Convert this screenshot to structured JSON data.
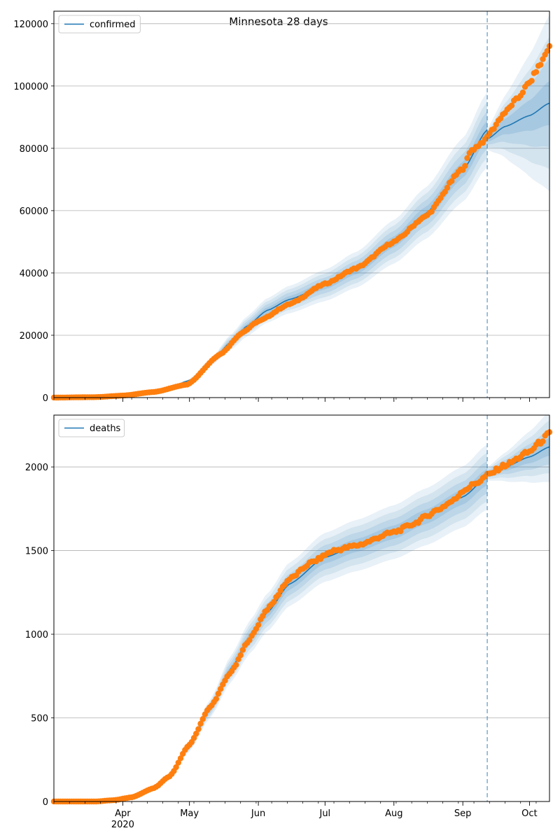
{
  "title": "Minnesota 28 days",
  "colors": {
    "model": "#1f77b4",
    "band": "#1f77b4",
    "observed": "#ff7f0e",
    "grid": "#b0b0b0",
    "split_line": "#1f77b4"
  },
  "x_axis": {
    "start": "2020-03-01",
    "end": "2020-10-10",
    "month_ticks": [
      {
        "date": "2020-04-01",
        "label": "Apr"
      },
      {
        "date": "2020-05-01",
        "label": "May"
      },
      {
        "date": "2020-06-01",
        "label": "Jun"
      },
      {
        "date": "2020-07-01",
        "label": "Jul"
      },
      {
        "date": "2020-08-01",
        "label": "Aug"
      },
      {
        "date": "2020-09-01",
        "label": "Sep"
      },
      {
        "date": "2020-10-01",
        "label": "Oct"
      }
    ],
    "year_label": "2020",
    "forecast_start": "2020-09-12"
  },
  "chart_data": [
    {
      "type": "line",
      "name": "confirmed",
      "legend": "confirmed",
      "legend_position": "top-left",
      "ylim": [
        0,
        124000
      ],
      "yticks": [
        0,
        20000,
        40000,
        60000,
        80000,
        100000,
        120000
      ],
      "grid": "horizontal",
      "model_fit": [
        [
          "2020-03-01",
          0
        ],
        [
          "2020-03-25",
          300
        ],
        [
          "2020-04-05",
          1000
        ],
        [
          "2020-04-20",
          2500
        ],
        [
          "2020-05-01",
          5500
        ],
        [
          "2020-05-10",
          11000
        ],
        [
          "2020-05-20",
          18000
        ],
        [
          "2020-05-27",
          23000
        ],
        [
          "2020-06-05",
          28000
        ],
        [
          "2020-06-15",
          31500
        ],
        [
          "2020-07-01",
          36000
        ],
        [
          "2020-07-15",
          41000
        ],
        [
          "2020-08-01",
          50000
        ],
        [
          "2020-08-15",
          59000
        ],
        [
          "2020-09-01",
          73000
        ],
        [
          "2020-09-12",
          86000
        ]
      ],
      "model_forecast": [
        [
          "2020-09-12",
          83000
        ],
        [
          "2020-09-20",
          87000
        ],
        [
          "2020-10-01",
          90500
        ],
        [
          "2020-10-10",
          94500
        ]
      ],
      "band_spread": {
        "fit": 0.14,
        "forecast_start": 0.04,
        "forecast_end": 0.3
      },
      "observed": [
        [
          "2020-03-01",
          0
        ],
        [
          "2020-03-20",
          150
        ],
        [
          "2020-04-01",
          650
        ],
        [
          "2020-04-15",
          1800
        ],
        [
          "2020-04-30",
          4200
        ],
        [
          "2020-05-15",
          14000
        ],
        [
          "2020-05-25",
          21000
        ],
        [
          "2020-06-01",
          24500
        ],
        [
          "2020-06-15",
          30000
        ],
        [
          "2020-07-01",
          36500
        ],
        [
          "2020-07-15",
          41500
        ],
        [
          "2020-08-01",
          50000
        ],
        [
          "2020-08-15",
          58000
        ],
        [
          "2020-09-01",
          73500
        ],
        [
          "2020-09-05",
          79500
        ],
        [
          "2020-09-11",
          82500
        ],
        [
          "2020-09-13",
          85000
        ],
        [
          "2020-09-20",
          91500
        ],
        [
          "2020-09-25",
          95500
        ],
        [
          "2020-10-01",
          101000
        ],
        [
          "2020-10-05",
          106000
        ],
        [
          "2020-10-10",
          112500
        ]
      ]
    },
    {
      "type": "line",
      "name": "deaths",
      "legend": "deaths",
      "legend_position": "top-left",
      "ylim": [
        0,
        2310
      ],
      "yticks": [
        0,
        500,
        1000,
        1500,
        2000
      ],
      "grid": "horizontal",
      "model_fit": [
        [
          "2020-03-01",
          0
        ],
        [
          "2020-03-25",
          5
        ],
        [
          "2020-04-05",
          30
        ],
        [
          "2020-04-20",
          120
        ],
        [
          "2020-05-01",
          330
        ],
        [
          "2020-05-10",
          550
        ],
        [
          "2020-05-20",
          800
        ],
        [
          "2020-05-28",
          980
        ],
        [
          "2020-06-05",
          1130
        ],
        [
          "2020-06-15",
          1300
        ],
        [
          "2020-07-01",
          1460
        ],
        [
          "2020-07-15",
          1530
        ],
        [
          "2020-08-01",
          1610
        ],
        [
          "2020-08-15",
          1700
        ],
        [
          "2020-09-01",
          1820
        ],
        [
          "2020-09-12",
          1940
        ]
      ],
      "model_forecast": [
        [
          "2020-09-12",
          1960
        ],
        [
          "2020-09-20",
          2000
        ],
        [
          "2020-10-01",
          2060
        ],
        [
          "2020-10-10",
          2120
        ]
      ],
      "band_spread": {
        "fit": 0.1,
        "forecast_start": 0.02,
        "forecast_end": 0.1
      },
      "observed": [
        [
          "2020-03-01",
          0
        ],
        [
          "2020-03-20",
          0
        ],
        [
          "2020-03-28",
          8
        ],
        [
          "2020-04-05",
          25
        ],
        [
          "2020-04-15",
          80
        ],
        [
          "2020-04-22",
          150
        ],
        [
          "2020-05-01",
          340
        ],
        [
          "2020-05-10",
          560
        ],
        [
          "2020-05-20",
          780
        ],
        [
          "2020-05-28",
          970
        ],
        [
          "2020-06-05",
          1150
        ],
        [
          "2020-06-15",
          1330
        ],
        [
          "2020-06-25",
          1430
        ],
        [
          "2020-07-05",
          1500
        ],
        [
          "2020-07-15",
          1530
        ],
        [
          "2020-08-01",
          1610
        ],
        [
          "2020-08-10",
          1660
        ],
        [
          "2020-08-15",
          1700
        ],
        [
          "2020-08-20",
          1740
        ],
        [
          "2020-08-28",
          1800
        ],
        [
          "2020-09-01",
          1860
        ],
        [
          "2020-09-08",
          1910
        ],
        [
          "2020-09-12",
          1950
        ],
        [
          "2020-09-20",
          2010
        ],
        [
          "2020-10-01",
          2090
        ],
        [
          "2020-10-05",
          2140
        ],
        [
          "2020-10-10",
          2200
        ]
      ]
    }
  ]
}
